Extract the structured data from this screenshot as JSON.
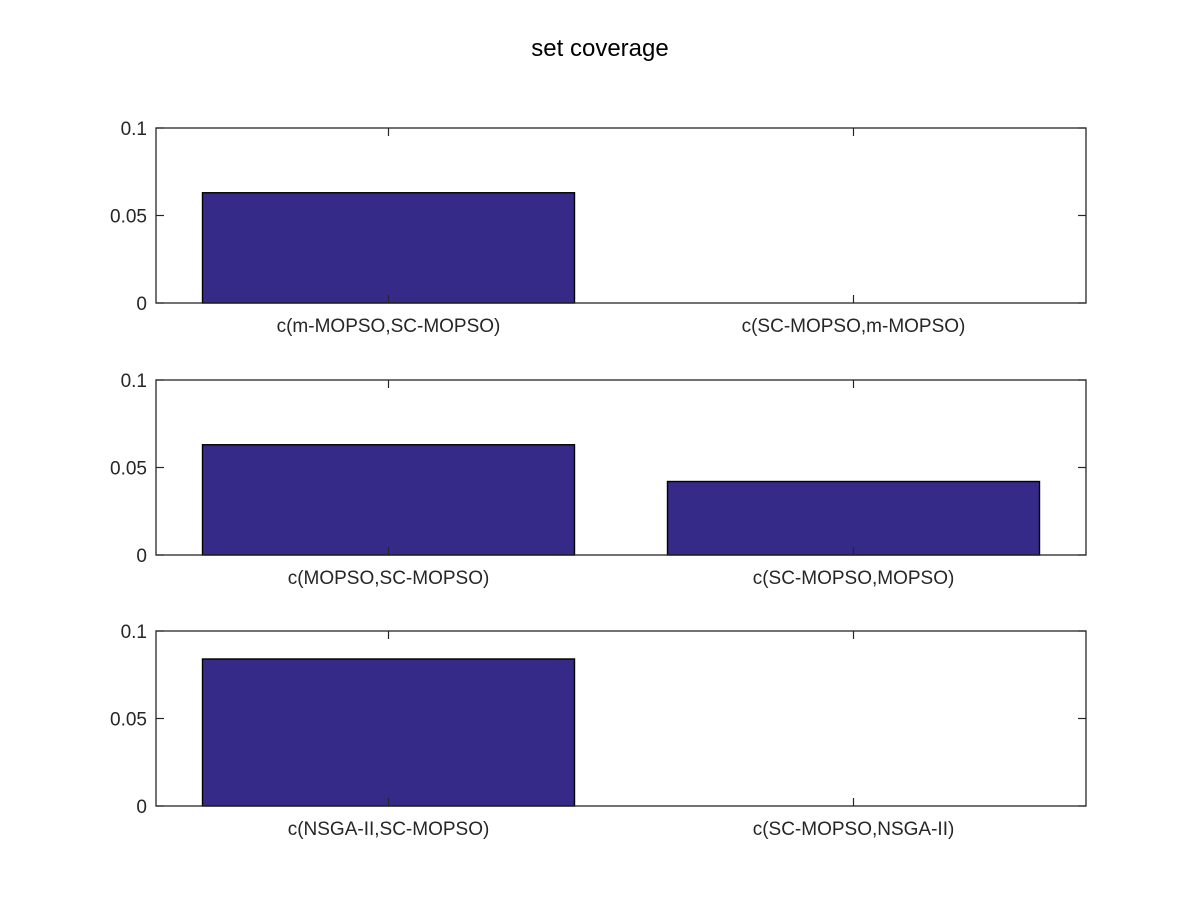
{
  "figure": {
    "title": "set coverage"
  },
  "chart_data": [
    {
      "type": "bar",
      "categories": [
        "c(m-MOPSO,SC-MOPSO)",
        "c(SC-MOPSO,m-MOPSO)"
      ],
      "values": [
        0.063,
        0
      ],
      "ylim": [
        0,
        0.1
      ],
      "yticks": [
        "0",
        "0.05",
        "0.1"
      ],
      "bar_color": "#352a87"
    },
    {
      "type": "bar",
      "categories": [
        "c(MOPSO,SC-MOPSO)",
        "c(SC-MOPSO,MOPSO)"
      ],
      "values": [
        0.063,
        0.042
      ],
      "ylim": [
        0,
        0.1
      ],
      "yticks": [
        "0",
        "0.05",
        "0.1"
      ],
      "bar_color": "#352a87"
    },
    {
      "type": "bar",
      "categories": [
        "c(NSGA-II,SC-MOPSO)",
        "c(SC-MOPSO,NSGA-II)"
      ],
      "values": [
        0.084,
        0
      ],
      "ylim": [
        0,
        0.1
      ],
      "yticks": [
        "0",
        "0.05",
        "0.1"
      ],
      "bar_color": "#352a87"
    }
  ]
}
